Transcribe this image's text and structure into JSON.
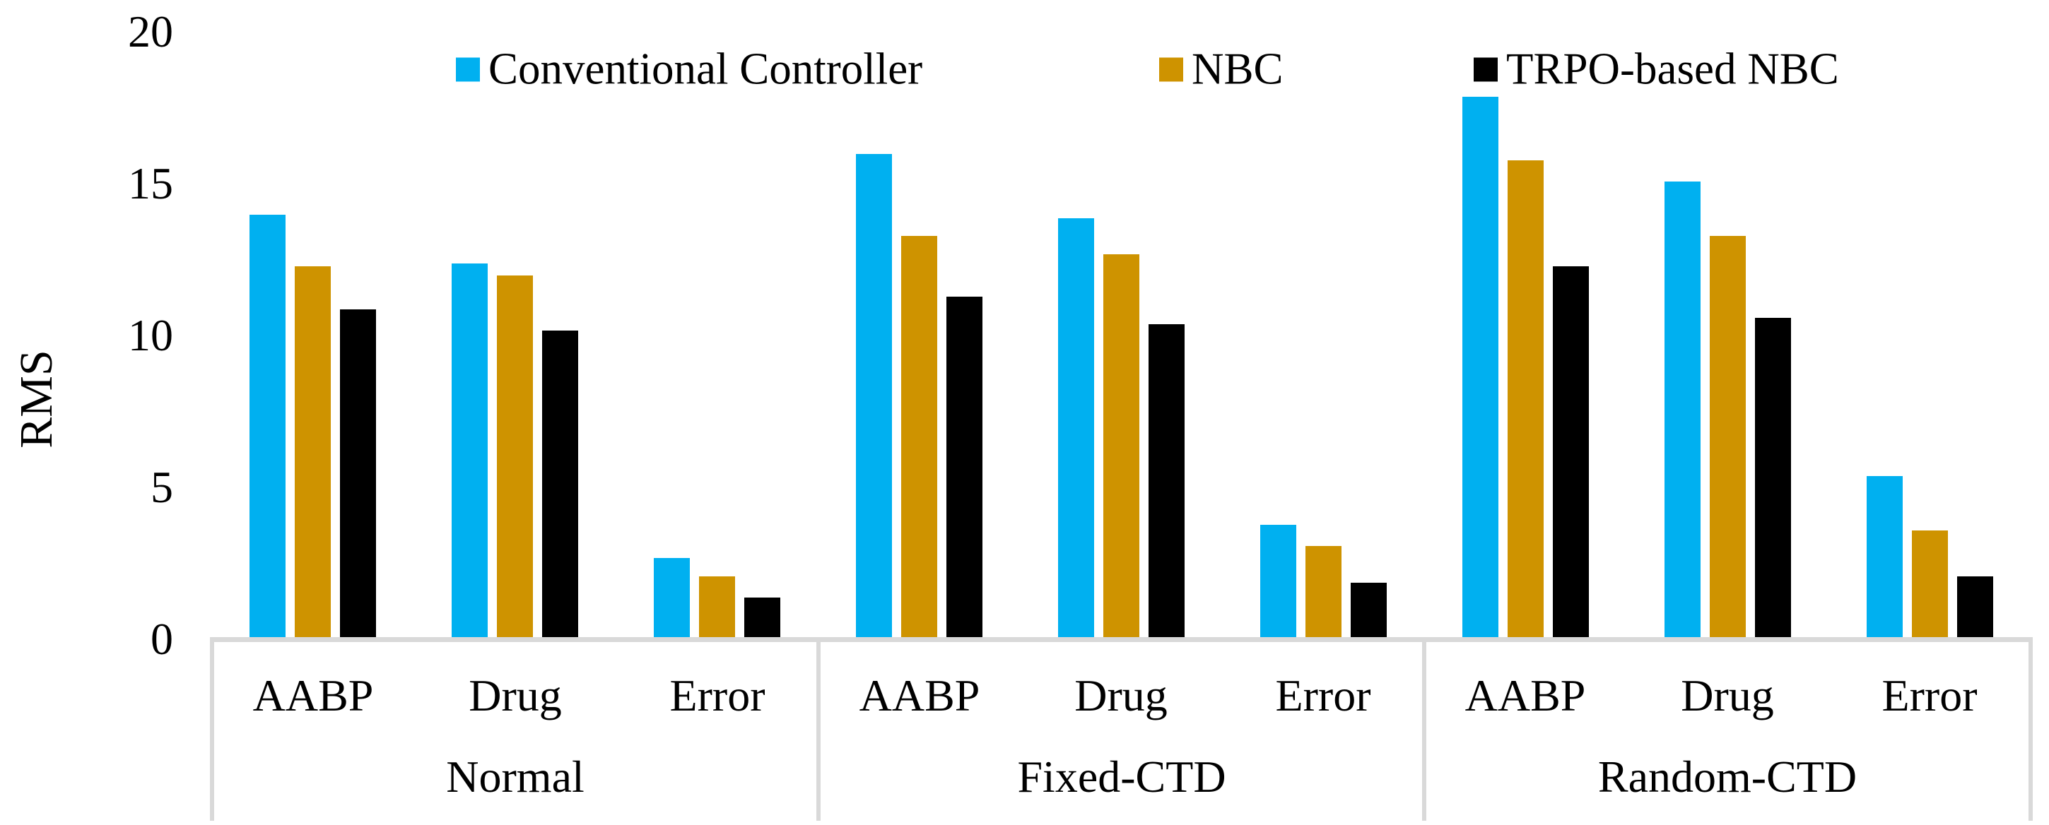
{
  "chart_data": {
    "type": "bar",
    "title": "",
    "ylabel": "RMS",
    "xlabel": "",
    "ylim": [
      0,
      20
    ],
    "yticks": [
      0,
      5,
      10,
      15,
      20
    ],
    "grid": false,
    "legend_position": "top",
    "axis_color": "#D9D9D9",
    "text_color": "#000000",
    "groups": [
      "Normal",
      "Fixed-CTD",
      "Random-CTD"
    ],
    "categories": [
      "AABP",
      "Drug",
      "Error"
    ],
    "series": [
      {
        "name": "Conventional Controller",
        "color": "#00B0F0",
        "values": [
          [
            13.9,
            12.3,
            2.6
          ],
          [
            15.9,
            13.8,
            3.7
          ],
          [
            17.8,
            15.0,
            5.3
          ]
        ]
      },
      {
        "name": "NBC",
        "color": "#CE9300",
        "values": [
          [
            12.2,
            11.9,
            2.0
          ],
          [
            13.2,
            12.6,
            3.0
          ],
          [
            15.7,
            13.2,
            3.5
          ]
        ]
      },
      {
        "name": "TRPO-based NBC",
        "color": "#000000",
        "values": [
          [
            10.8,
            10.1,
            1.3
          ],
          [
            11.2,
            10.3,
            1.8
          ],
          [
            12.2,
            10.5,
            2.0
          ]
        ]
      }
    ]
  }
}
